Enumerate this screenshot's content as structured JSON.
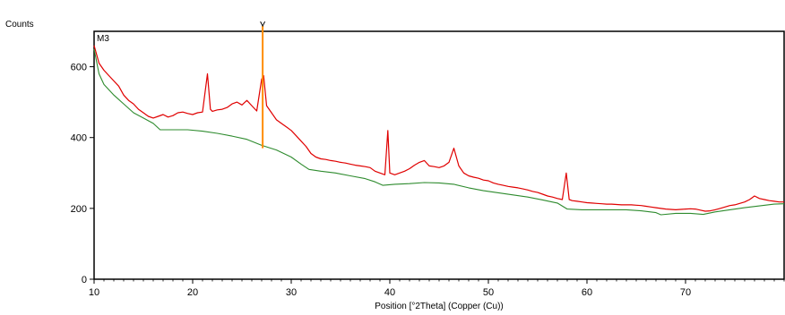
{
  "chart_data": {
    "type": "line",
    "title": "",
    "ylabel": "Counts",
    "xlabel": "Position [°2Theta] (Copper (Cu))",
    "sample_label": "M3",
    "xlim": [
      10,
      80
    ],
    "ylim": [
      0,
      700
    ],
    "x_ticks": [
      "10",
      "20",
      "30",
      "40",
      "50",
      "60",
      "70"
    ],
    "y_ticks": [
      "0",
      "200",
      "400",
      "600"
    ],
    "grid": false,
    "colors": {
      "pattern": "#e00000",
      "background": "#2e8b2e",
      "peak_marker": "#ff8c00"
    },
    "peak_marker": {
      "x": 27.1,
      "y_from": 370,
      "y_to": 715
    },
    "series": [
      {
        "role": "measured pattern",
        "color": "#e00000",
        "points": [
          [
            10.0,
            660
          ],
          [
            10.2,
            640
          ],
          [
            10.5,
            610
          ],
          [
            11.0,
            590
          ],
          [
            11.5,
            575
          ],
          [
            12.0,
            560
          ],
          [
            12.5,
            545
          ],
          [
            13.0,
            520
          ],
          [
            13.5,
            505
          ],
          [
            14.0,
            495
          ],
          [
            14.5,
            480
          ],
          [
            15.0,
            470
          ],
          [
            15.5,
            460
          ],
          [
            16.0,
            455
          ],
          [
            16.5,
            460
          ],
          [
            17.0,
            465
          ],
          [
            17.5,
            458
          ],
          [
            18.0,
            462
          ],
          [
            18.5,
            470
          ],
          [
            19.0,
            472
          ],
          [
            19.5,
            468
          ],
          [
            20.0,
            465
          ],
          [
            20.5,
            470
          ],
          [
            21.0,
            472
          ],
          [
            21.5,
            580
          ],
          [
            21.8,
            480
          ],
          [
            22.0,
            474
          ],
          [
            22.5,
            478
          ],
          [
            23.0,
            480
          ],
          [
            23.5,
            485
          ],
          [
            24.0,
            495
          ],
          [
            24.5,
            500
          ],
          [
            25.0,
            492
          ],
          [
            25.5,
            505
          ],
          [
            26.0,
            490
          ],
          [
            26.5,
            475
          ],
          [
            27.0,
            565
          ],
          [
            27.2,
            575
          ],
          [
            27.5,
            490
          ],
          [
            28.0,
            470
          ],
          [
            28.5,
            450
          ],
          [
            29.0,
            440
          ],
          [
            29.5,
            430
          ],
          [
            30.0,
            420
          ],
          [
            30.5,
            405
          ],
          [
            31.0,
            390
          ],
          [
            31.5,
            375
          ],
          [
            32.0,
            355
          ],
          [
            32.5,
            345
          ],
          [
            33.0,
            340
          ],
          [
            33.5,
            338
          ],
          [
            34.0,
            335
          ],
          [
            34.5,
            333
          ],
          [
            35.0,
            330
          ],
          [
            35.5,
            328
          ],
          [
            36.0,
            325
          ],
          [
            36.5,
            322
          ],
          [
            37.0,
            320
          ],
          [
            37.5,
            318
          ],
          [
            38.0,
            315
          ],
          [
            38.5,
            305
          ],
          [
            39.0,
            300
          ],
          [
            39.5,
            295
          ],
          [
            39.8,
            420
          ],
          [
            40.0,
            300
          ],
          [
            40.5,
            295
          ],
          [
            41.0,
            300
          ],
          [
            41.5,
            305
          ],
          [
            42.0,
            312
          ],
          [
            42.5,
            322
          ],
          [
            43.0,
            330
          ],
          [
            43.5,
            335
          ],
          [
            44.0,
            320
          ],
          [
            44.5,
            318
          ],
          [
            45.0,
            315
          ],
          [
            45.5,
            320
          ],
          [
            46.0,
            330
          ],
          [
            46.5,
            370
          ],
          [
            47.0,
            320
          ],
          [
            47.5,
            300
          ],
          [
            48.0,
            292
          ],
          [
            48.5,
            288
          ],
          [
            49.0,
            285
          ],
          [
            49.5,
            280
          ],
          [
            50.0,
            278
          ],
          [
            50.5,
            272
          ],
          [
            51.0,
            268
          ],
          [
            51.5,
            265
          ],
          [
            52.0,
            262
          ],
          [
            52.5,
            260
          ],
          [
            53.0,
            258
          ],
          [
            53.5,
            255
          ],
          [
            54.0,
            252
          ],
          [
            54.5,
            248
          ],
          [
            55.0,
            245
          ],
          [
            55.5,
            240
          ],
          [
            56.0,
            235
          ],
          [
            56.5,
            232
          ],
          [
            57.0,
            228
          ],
          [
            57.5,
            225
          ],
          [
            57.9,
            300
          ],
          [
            58.2,
            225
          ],
          [
            58.5,
            222
          ],
          [
            59.0,
            220
          ],
          [
            59.5,
            218
          ],
          [
            60.0,
            216
          ],
          [
            60.5,
            215
          ],
          [
            61.0,
            214
          ],
          [
            61.5,
            213
          ],
          [
            62.0,
            212
          ],
          [
            62.5,
            212
          ],
          [
            63.0,
            211
          ],
          [
            63.5,
            210
          ],
          [
            64.0,
            210
          ],
          [
            64.5,
            210
          ],
          [
            65.0,
            209
          ],
          [
            65.5,
            208
          ],
          [
            66.0,
            206
          ],
          [
            66.5,
            204
          ],
          [
            67.0,
            202
          ],
          [
            67.5,
            200
          ],
          [
            68.0,
            198
          ],
          [
            68.5,
            197
          ],
          [
            69.0,
            196
          ],
          [
            69.5,
            197
          ],
          [
            70.0,
            198
          ],
          [
            70.5,
            199
          ],
          [
            71.0,
            198
          ],
          [
            71.5,
            195
          ],
          [
            72.0,
            192
          ],
          [
            72.5,
            193
          ],
          [
            73.0,
            196
          ],
          [
            73.5,
            200
          ],
          [
            74.0,
            204
          ],
          [
            74.5,
            208
          ],
          [
            75.0,
            210
          ],
          [
            75.5,
            214
          ],
          [
            76.0,
            218
          ],
          [
            76.5,
            225
          ],
          [
            77.0,
            235
          ],
          [
            77.5,
            228
          ],
          [
            78.0,
            225
          ],
          [
            78.5,
            222
          ],
          [
            79.0,
            220
          ],
          [
            79.5,
            218
          ],
          [
            80.0,
            218
          ]
        ]
      },
      {
        "role": "background",
        "color": "#2e8b2e",
        "points": [
          [
            10.0,
            650
          ],
          [
            10.5,
            580
          ],
          [
            11.0,
            550
          ],
          [
            12.0,
            520
          ],
          [
            13.0,
            495
          ],
          [
            14.0,
            470
          ],
          [
            15.0,
            455
          ],
          [
            16.0,
            440
          ],
          [
            16.7,
            422
          ],
          [
            18.0,
            422
          ],
          [
            19.5,
            422
          ],
          [
            21.0,
            418
          ],
          [
            22.5,
            412
          ],
          [
            24.0,
            404
          ],
          [
            25.5,
            395
          ],
          [
            27.0,
            378
          ],
          [
            28.5,
            365
          ],
          [
            30.0,
            345
          ],
          [
            31.0,
            325
          ],
          [
            31.8,
            310
          ],
          [
            33.0,
            305
          ],
          [
            34.5,
            300
          ],
          [
            36.0,
            292
          ],
          [
            37.5,
            284
          ],
          [
            38.5,
            275
          ],
          [
            39.3,
            265
          ],
          [
            40.5,
            268
          ],
          [
            42.0,
            270
          ],
          [
            43.5,
            273
          ],
          [
            45.0,
            272
          ],
          [
            46.5,
            268
          ],
          [
            48.0,
            258
          ],
          [
            49.5,
            250
          ],
          [
            51.0,
            244
          ],
          [
            52.5,
            238
          ],
          [
            54.0,
            232
          ],
          [
            55.5,
            224
          ],
          [
            57.0,
            215
          ],
          [
            58.0,
            198
          ],
          [
            59.5,
            196
          ],
          [
            61.0,
            196
          ],
          [
            62.5,
            196
          ],
          [
            64.0,
            196
          ],
          [
            65.5,
            193
          ],
          [
            67.0,
            188
          ],
          [
            67.5,
            182
          ],
          [
            69.0,
            186
          ],
          [
            70.5,
            186
          ],
          [
            71.8,
            183
          ],
          [
            73.0,
            190
          ],
          [
            74.5,
            196
          ],
          [
            76.0,
            202
          ],
          [
            77.5,
            207
          ],
          [
            79.0,
            212
          ],
          [
            80.0,
            213
          ]
        ]
      }
    ]
  }
}
